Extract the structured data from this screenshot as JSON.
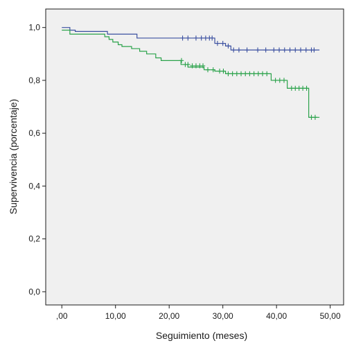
{
  "chart_data": {
    "type": "line",
    "subtype": "kaplan-meier",
    "title": "",
    "xlabel": "Seguimiento (meses)",
    "ylabel": "Supervivencia (porcentaje)",
    "xlim": [
      -3.0,
      52.5
    ],
    "ylim": [
      -0.05,
      1.07
    ],
    "xticks": [
      0,
      10,
      20,
      30,
      40,
      50
    ],
    "xtick_labels": [
      ",00",
      "10,00",
      "20,00",
      "30,00",
      "40,00",
      "50,00"
    ],
    "yticks": [
      0.0,
      0.2,
      0.4,
      0.6,
      0.8,
      1.0
    ],
    "ytick_labels": [
      "0,0",
      "0,2",
      "0,4",
      "0,6",
      "0,8",
      "1,0"
    ],
    "grid": false,
    "plot_background": "#f0f0f0",
    "series": [
      {
        "color": "#3a4fa0",
        "steps": [
          [
            0,
            1.0
          ],
          [
            1.5,
            0.99
          ],
          [
            2.5,
            0.985
          ],
          [
            8.5,
            0.975
          ],
          [
            14.0,
            0.96
          ],
          [
            28.5,
            0.94
          ],
          [
            30.5,
            0.93
          ],
          [
            31.5,
            0.915
          ],
          [
            48.0,
            0.915
          ]
        ],
        "censored": [
          [
            22.5,
            0.96
          ],
          [
            23.5,
            0.96
          ],
          [
            25.0,
            0.96
          ],
          [
            26.0,
            0.96
          ],
          [
            26.8,
            0.96
          ],
          [
            27.5,
            0.96
          ],
          [
            28.0,
            0.96
          ],
          [
            29.0,
            0.94
          ],
          [
            30.0,
            0.94
          ],
          [
            31.0,
            0.93
          ],
          [
            32.0,
            0.915
          ],
          [
            33.0,
            0.915
          ],
          [
            34.5,
            0.915
          ],
          [
            36.5,
            0.915
          ],
          [
            38.0,
            0.915
          ],
          [
            39.5,
            0.915
          ],
          [
            40.5,
            0.915
          ],
          [
            41.5,
            0.915
          ],
          [
            42.5,
            0.915
          ],
          [
            43.5,
            0.915
          ],
          [
            44.5,
            0.915
          ],
          [
            45.5,
            0.915
          ],
          [
            46.5,
            0.915
          ],
          [
            47.0,
            0.915
          ]
        ]
      },
      {
        "color": "#2aa24a",
        "steps": [
          [
            0,
            0.99
          ],
          [
            1.5,
            0.975
          ],
          [
            8.0,
            0.965
          ],
          [
            8.8,
            0.955
          ],
          [
            9.5,
            0.945
          ],
          [
            10.5,
            0.935
          ],
          [
            11.2,
            0.928
          ],
          [
            13.0,
            0.92
          ],
          [
            14.5,
            0.91
          ],
          [
            15.8,
            0.9
          ],
          [
            17.5,
            0.885
          ],
          [
            18.5,
            0.875
          ],
          [
            22.2,
            0.86
          ],
          [
            23.5,
            0.85
          ],
          [
            26.5,
            0.84
          ],
          [
            28.5,
            0.835
          ],
          [
            30.5,
            0.825
          ],
          [
            39.0,
            0.8
          ],
          [
            42.0,
            0.77
          ],
          [
            46.0,
            0.66
          ],
          [
            48.0,
            0.66
          ]
        ],
        "censored": [
          [
            22.3,
            0.875
          ],
          [
            23.0,
            0.86
          ],
          [
            23.5,
            0.86
          ],
          [
            24.3,
            0.855
          ],
          [
            25.0,
            0.855
          ],
          [
            25.7,
            0.855
          ],
          [
            26.3,
            0.855
          ],
          [
            27.2,
            0.84
          ],
          [
            28.2,
            0.84
          ],
          [
            29.4,
            0.835
          ],
          [
            30.1,
            0.835
          ],
          [
            31.0,
            0.825
          ],
          [
            31.8,
            0.825
          ],
          [
            32.6,
            0.825
          ],
          [
            33.4,
            0.825
          ],
          [
            34.2,
            0.825
          ],
          [
            35.0,
            0.825
          ],
          [
            35.8,
            0.825
          ],
          [
            36.6,
            0.825
          ],
          [
            37.4,
            0.825
          ],
          [
            38.2,
            0.825
          ],
          [
            39.8,
            0.8
          ],
          [
            40.6,
            0.8
          ],
          [
            41.4,
            0.8
          ],
          [
            42.8,
            0.77
          ],
          [
            43.5,
            0.77
          ],
          [
            44.2,
            0.77
          ],
          [
            44.9,
            0.77
          ],
          [
            45.6,
            0.77
          ],
          [
            46.5,
            0.66
          ],
          [
            47.2,
            0.66
          ]
        ]
      }
    ]
  }
}
